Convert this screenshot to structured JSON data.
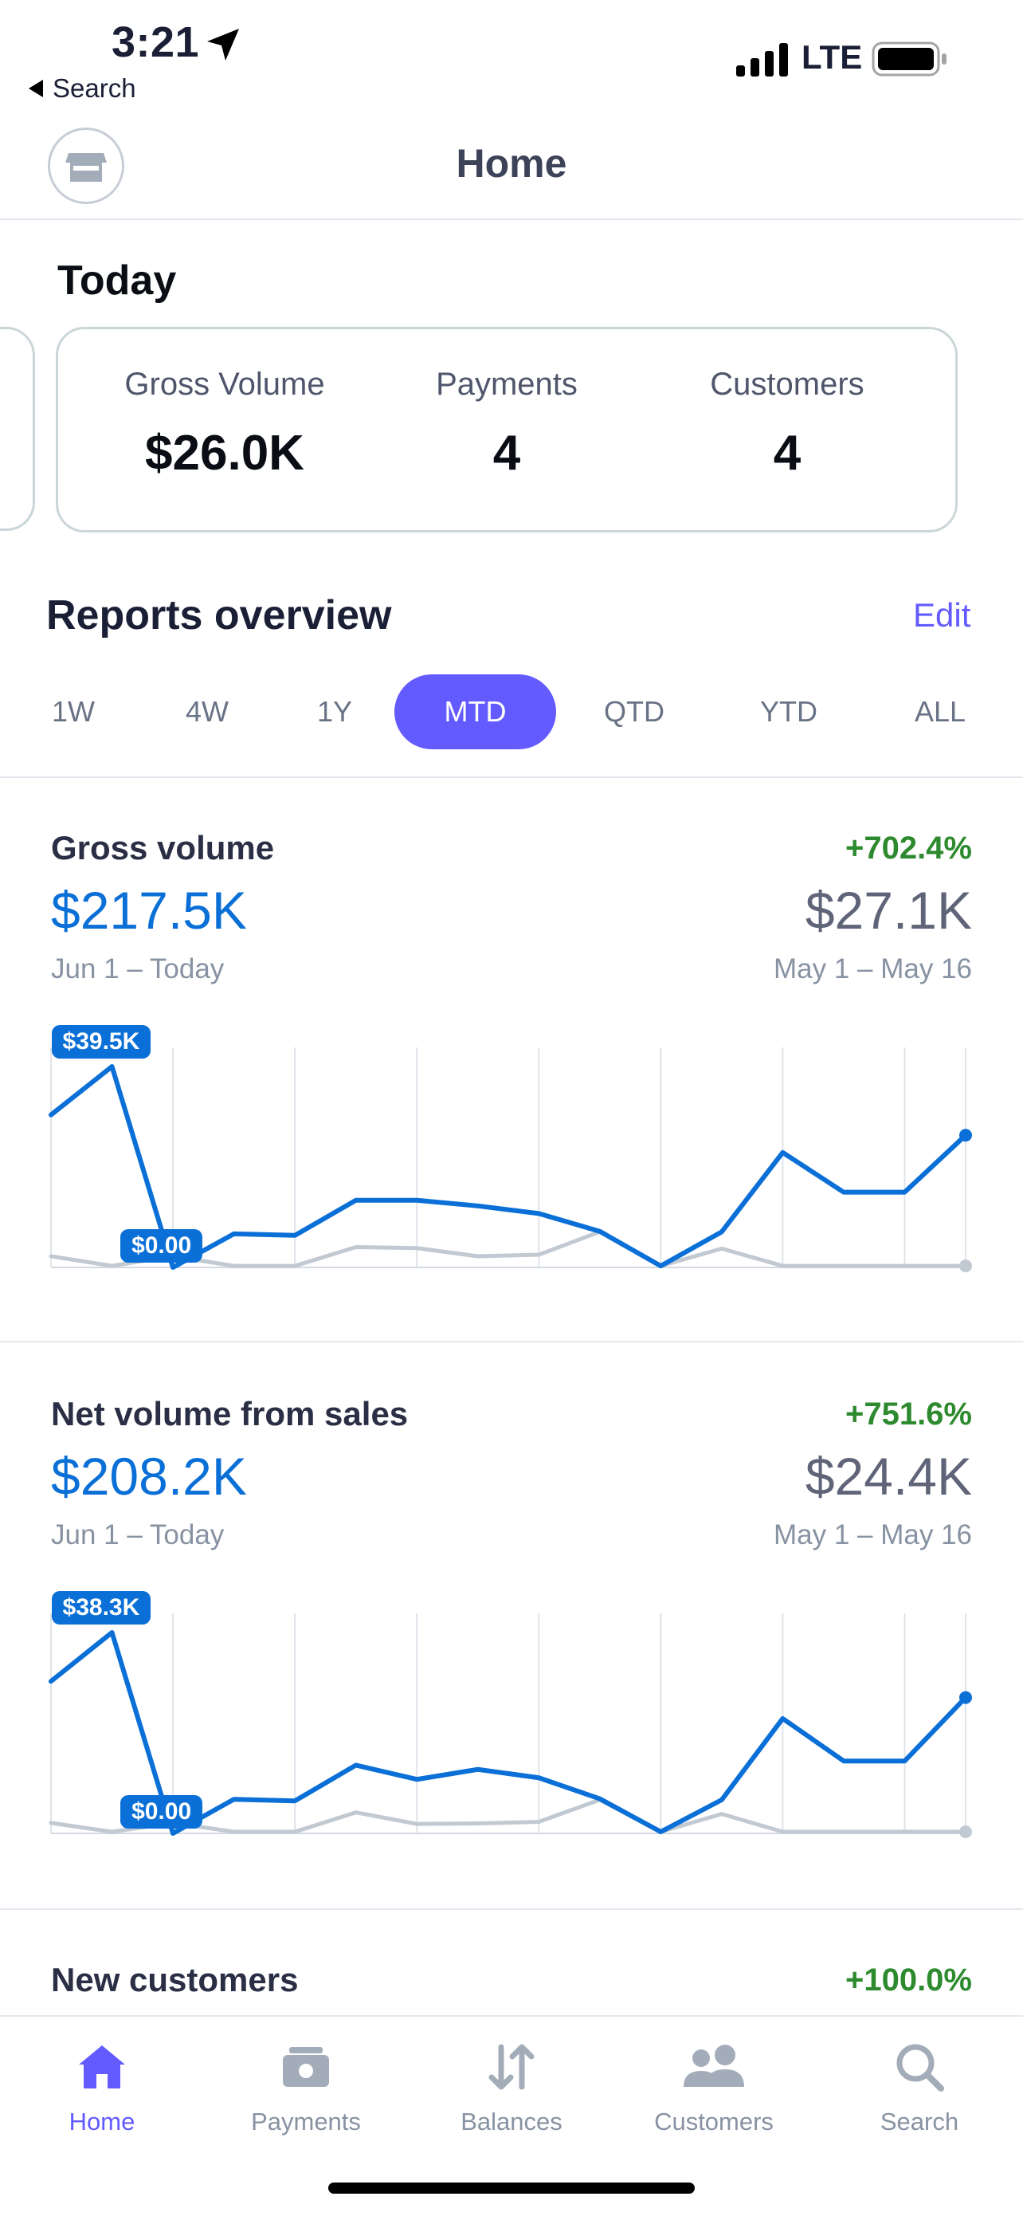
{
  "status_bar": {
    "time": "3:21",
    "back_label": "Search",
    "network": "LTE"
  },
  "header": {
    "title": "Home"
  },
  "today": {
    "title": "Today",
    "stats": [
      {
        "label": "Gross Volume",
        "value": "$26.0K"
      },
      {
        "label": "Payments",
        "value": "4"
      },
      {
        "label": "Customers",
        "value": "4"
      }
    ]
  },
  "reports": {
    "title": "Reports overview",
    "edit_label": "Edit",
    "ranges": [
      "1W",
      "4W",
      "1Y",
      "MTD",
      "QTD",
      "YTD",
      "ALL"
    ],
    "active_range": "MTD"
  },
  "metrics": [
    {
      "title": "Gross volume",
      "change": "+702.4%",
      "value": "$217.5K",
      "previous_value": "$27.1K",
      "range": "Jun 1 – Today",
      "previous_range": "May 1 – May 16",
      "max_label": "$39.5K",
      "min_label": "$0.00"
    },
    {
      "title": "Net volume from sales",
      "change": "+751.6%",
      "value": "$208.2K",
      "previous_value": "$24.4K",
      "range": "Jun 1 – Today",
      "previous_range": "May 1 – May 16",
      "max_label": "$38.3K",
      "min_label": "$0.00"
    },
    {
      "title": "New customers",
      "change": "+100.0%"
    }
  ],
  "chart_data": [
    {
      "type": "line",
      "x": [
        1,
        2,
        3,
        4,
        5,
        6,
        7,
        8,
        9,
        10,
        11,
        12,
        13,
        14,
        15,
        16
      ],
      "series": [
        {
          "values": [
            30.0,
            39.5,
            0,
            6.6,
            6.3,
            13.2,
            13.2,
            12.1,
            10.6,
            7.1,
            0.3,
            7.0,
            22.6,
            14.8,
            14.8,
            26.0
          ],
          "color": "#0a6fd6"
        },
        {
          "values": [
            2.2,
            0.3,
            2.2,
            0.3,
            0.3,
            4.0,
            3.8,
            2.2,
            2.5,
            7.0,
            0.3,
            3.7,
            0.3,
            0.3,
            0.3,
            0.3
          ],
          "color": "#c1c9d2"
        }
      ],
      "ylim": [
        0,
        39.5
      ]
    },
    {
      "type": "line",
      "x": [
        1,
        2,
        3,
        4,
        5,
        6,
        7,
        8,
        9,
        10,
        11,
        12,
        13,
        14,
        15,
        16
      ],
      "series": [
        {
          "values": [
            29.0,
            38.3,
            0,
            6.5,
            6.2,
            13.0,
            10.3,
            12.2,
            10.6,
            6.6,
            0.3,
            6.4,
            21.9,
            13.8,
            13.8,
            25.9
          ],
          "color": "#0a6fd6"
        },
        {
          "values": [
            2.0,
            0.3,
            2.0,
            0.3,
            0.3,
            4.0,
            1.8,
            1.9,
            2.2,
            6.4,
            0.3,
            3.7,
            0.3,
            0.3,
            0.3,
            0.3
          ],
          "color": "#c1c9d2"
        }
      ],
      "ylim": [
        0,
        38.3
      ]
    }
  ]
}
